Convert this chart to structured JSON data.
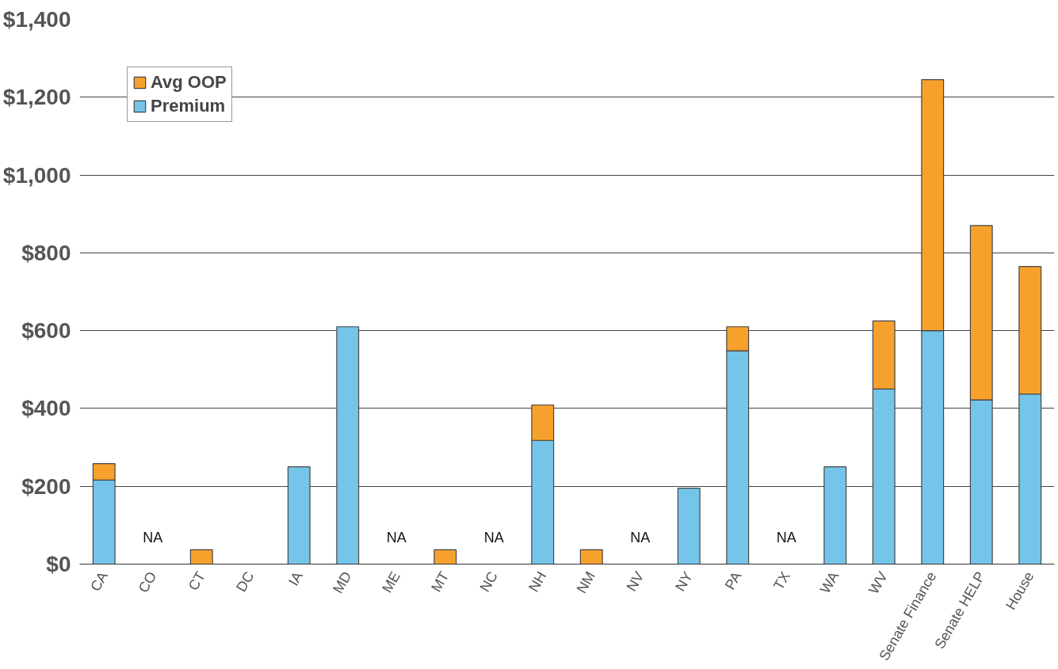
{
  "chart_data": {
    "type": "bar",
    "stacked": true,
    "categories": [
      "CA",
      "CO",
      "CT",
      "DC",
      "IA",
      "MD",
      "ME",
      "MT",
      "NC",
      "NH",
      "NM",
      "NV",
      "NY",
      "PA",
      "TX",
      "WA",
      "WV",
      "Senate Finance",
      "Senate HELP",
      "House"
    ],
    "series": [
      {
        "name": "Premium",
        "color": "#75c5ea",
        "values": [
          216,
          null,
          null,
          null,
          250,
          610,
          null,
          null,
          null,
          318,
          null,
          null,
          195,
          548,
          null,
          250,
          450,
          600,
          422,
          437
        ],
        "value_labels": [
          null,
          "NA",
          null,
          null,
          null,
          null,
          "NA",
          null,
          "NA",
          null,
          null,
          "NA",
          null,
          null,
          "NA",
          null,
          null,
          null,
          null,
          null
        ]
      },
      {
        "name": "Avg OOP",
        "color": "#f7a12d",
        "values": [
          42,
          null,
          37,
          null,
          null,
          null,
          null,
          37,
          null,
          91,
          37,
          null,
          null,
          62,
          null,
          null,
          175,
          645,
          448,
          328
        ]
      }
    ],
    "ylim": [
      0,
      1400
    ],
    "yticks": [
      {
        "value": 0,
        "label": "$0"
      },
      {
        "value": 200,
        "label": "$200"
      },
      {
        "value": 400,
        "label": "$400"
      },
      {
        "value": 600,
        "label": "$600"
      },
      {
        "value": 800,
        "label": "$800"
      },
      {
        "value": 1000,
        "label": "$1,000"
      },
      {
        "value": 1200,
        "label": "$1,200"
      },
      {
        "value": 1400,
        "label": "$1,400"
      }
    ],
    "grid": "y",
    "legend": "top left"
  }
}
